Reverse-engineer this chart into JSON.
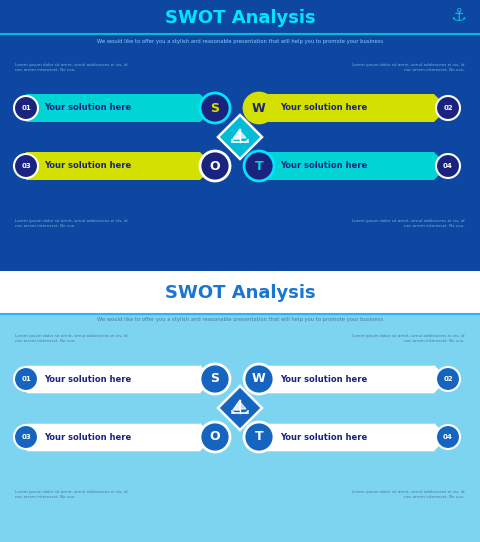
{
  "title": "SWOT Analysis",
  "subtitle": "We would like to offer you a stylish and reasonable presentation that will help you to promote your business",
  "lorem_tl": "Lorem ipsum dolor sit amet, simul adolescens ei vis, id\nnec arrem interesset. Ne usu.",
  "lorem_tr": "Lorem ipsum dolor sit amet, simul adolescens ei vis, id\nnac arrem interesset. Ne usu.",
  "lorem_bl": "Lorem ipsum dolor sit amet, simul adolescens ei vis, id\nnec arrem interesset. Ne usu.",
  "lorem_br": "Lorem ipsum dolor sit amet, simul adolescens ei vis, id\nnec arrem interesset. Ne usu.",
  "solution_text": "Your solution here",
  "slide1": {
    "bg_color": "#0d47a1",
    "title_color": "#00e5ff",
    "header_line_color": "#00bcd4",
    "subtitle_color": "#90caf9",
    "lorem_color": "#7bafd4",
    "bar_left_top_color": "#00d4d4",
    "bar_right_top_color": "#d4e000",
    "bar_left_bot_color": "#d4e000",
    "bar_right_bot_color": "#00d4d4",
    "num_circle_bg": "#1a237e",
    "num_circle_border": "#ffffff",
    "s_circle_bg": "#1a237e",
    "s_circle_border": "#00e5ff",
    "s_letter_color": "#d4e000",
    "w_circle_bg": "#d4e000",
    "w_circle_border": "#d4e000",
    "w_letter_color": "#1a237e",
    "o_circle_bg": "#1a237e",
    "o_circle_border": "#ffffff",
    "o_letter_color": "#ffffff",
    "t_circle_bg": "#1a237e",
    "t_circle_border": "#00e5ff",
    "t_letter_color": "#00d4d4",
    "anchor_color": "#00bcd4",
    "diamond_color": "#00bcd4",
    "diamond_border": "#1a237e",
    "text_on_bar_dark": "#1a237e",
    "number_text": "#ffffff"
  },
  "slide2": {
    "bg_color": "#7dd4f0",
    "title_color": "#1976d2",
    "header_bg": "#ffffff",
    "header_line_color": "#29b6f6",
    "subtitle_color": "#4a7a9b",
    "lorem_color": "#4a7a9b",
    "bar_color": "#ffffff",
    "bar_border": "#c8c8c8",
    "num_circle_bg": "#1565c0",
    "num_circle_border": "#ffffff",
    "s_circle_bg": "#1565c0",
    "s_circle_border": "#ffffff",
    "w_circle_bg": "#1565c0",
    "w_circle_border": "#ffffff",
    "o_circle_bg": "#1565c0",
    "o_circle_border": "#ffffff",
    "t_circle_bg": "#1565c0",
    "t_circle_border": "#ffffff",
    "letter_color": "#ffffff",
    "diamond_color": "#1565c0",
    "diamond_border": "#ffffff",
    "text_on_bar": "#1a237e",
    "number_text": "#ffffff"
  }
}
